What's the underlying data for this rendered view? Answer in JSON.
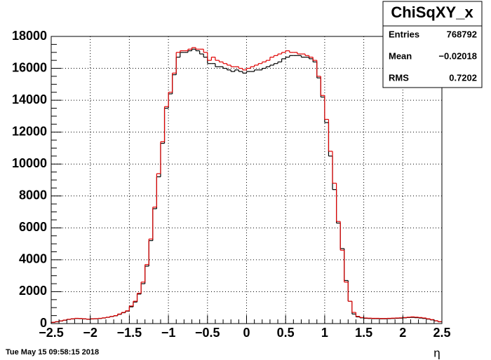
{
  "chart_data": {
    "type": "histogram",
    "stats": {
      "name": "ChiSqXY_x",
      "rows": [
        {
          "label": "Entries",
          "value": "768792"
        },
        {
          "label": "Mean",
          "value": "−0.02018"
        },
        {
          "label": "RMS",
          "value": "0.7202"
        }
      ]
    },
    "x_label": "η",
    "timestamp": "Tue May 15 09:58:15 2018",
    "bins": [
      -2.5,
      -2.45,
      -2.4,
      -2.35,
      -2.3,
      -2.25,
      -2.2,
      -2.15,
      -2.1,
      -2.05,
      -2,
      -1.95,
      -1.9,
      -1.85,
      -1.8,
      -1.75,
      -1.7,
      -1.65,
      -1.6,
      -1.55,
      -1.5,
      -1.45,
      -1.4,
      -1.35,
      -1.3,
      -1.25,
      -1.2,
      -1.15,
      -1.1,
      -1.05,
      -1,
      -0.95,
      -0.9,
      -0.85,
      -0.8,
      -0.75,
      -0.7,
      -0.65,
      -0.6,
      -0.55,
      -0.5,
      -0.45,
      -0.4,
      -0.35,
      -0.3,
      -0.25,
      -0.2,
      -0.15,
      -0.1,
      -0.05,
      0,
      0.05,
      0.1,
      0.15,
      0.2,
      0.25,
      0.3,
      0.35,
      0.4,
      0.45,
      0.5,
      0.55,
      0.6,
      0.65,
      0.7,
      0.75,
      0.8,
      0.85,
      0.9,
      0.95,
      1,
      1.05,
      1.1,
      1.15,
      1.2,
      1.25,
      1.3,
      1.35,
      1.4,
      1.45,
      1.5,
      1.55,
      1.6,
      1.65,
      1.7,
      1.75,
      1.8,
      1.85,
      1.9,
      1.95,
      2,
      2.05,
      2.1,
      2.15,
      2.2,
      2.25,
      2.3,
      2.35,
      2.4,
      2.45,
      2.5
    ],
    "series": [
      {
        "color": "#000000",
        "values": [
          70,
          110,
          160,
          210,
          260,
          290,
          320,
          310,
          290,
          270,
          290,
          300,
          320,
          350,
          390,
          440,
          490,
          580,
          680,
          780,
          1050,
          1350,
          1850,
          2500,
          3600,
          5200,
          7200,
          9200,
          11300,
          13500,
          14400,
          15600,
          16700,
          17000,
          17000,
          17100,
          17200,
          17100,
          16900,
          16700,
          16300,
          16300,
          16100,
          16100,
          16000,
          15900,
          15800,
          15900,
          15800,
          15700,
          15800,
          15800,
          15900,
          15900,
          16000,
          16100,
          16200,
          16300,
          16400,
          16600,
          16700,
          16800,
          16800,
          16800,
          16700,
          16700,
          16600,
          16400,
          15400,
          14200,
          12600,
          10500,
          8400,
          6300,
          4700,
          2700,
          1400,
          600,
          420,
          360,
          330,
          320,
          310,
          310,
          300,
          300,
          310,
          320,
          330,
          340,
          360,
          380,
          390,
          370,
          350,
          320,
          280,
          230,
          170,
          110
        ]
      },
      {
        "color": "#e00000",
        "values": [
          80,
          120,
          170,
          220,
          270,
          300,
          330,
          320,
          300,
          280,
          300,
          310,
          330,
          360,
          400,
          450,
          500,
          600,
          700,
          800,
          1100,
          1400,
          1900,
          2600,
          3700,
          5300,
          7300,
          9400,
          11400,
          13600,
          14500,
          15700,
          17000,
          17100,
          17100,
          17200,
          17300,
          17200,
          17200,
          17000,
          16500,
          16700,
          16500,
          16400,
          16300,
          16200,
          16100,
          16100,
          16000,
          15900,
          16000,
          16100,
          16200,
          16300,
          16400,
          16500,
          16700,
          16800,
          16900,
          17000,
          17100,
          17000,
          17000,
          16900,
          16900,
          16800,
          16700,
          16500,
          15500,
          14300,
          12800,
          10800,
          8800,
          6400,
          4600,
          2600,
          1400,
          700,
          450,
          380,
          350,
          340,
          330,
          330,
          320,
          320,
          330,
          340,
          350,
          360,
          380,
          400,
          420,
          400,
          380,
          350,
          300,
          250,
          180,
          120
        ]
      }
    ],
    "xlim": [
      -2.5,
      2.5
    ],
    "ylim": [
      0,
      18000
    ],
    "xticks": [
      {
        "value": -2.5,
        "label": "−2.5"
      },
      {
        "value": -2,
        "label": "−2"
      },
      {
        "value": -1.5,
        "label": "−1.5"
      },
      {
        "value": -1,
        "label": "−1"
      },
      {
        "value": -0.5,
        "label": "−0.5"
      },
      0,
      0.5,
      1,
      1.5,
      2,
      2.5
    ],
    "yticks": [
      0,
      2000,
      4000,
      6000,
      8000,
      10000,
      12000,
      14000,
      16000,
      18000
    ],
    "grid": true
  }
}
